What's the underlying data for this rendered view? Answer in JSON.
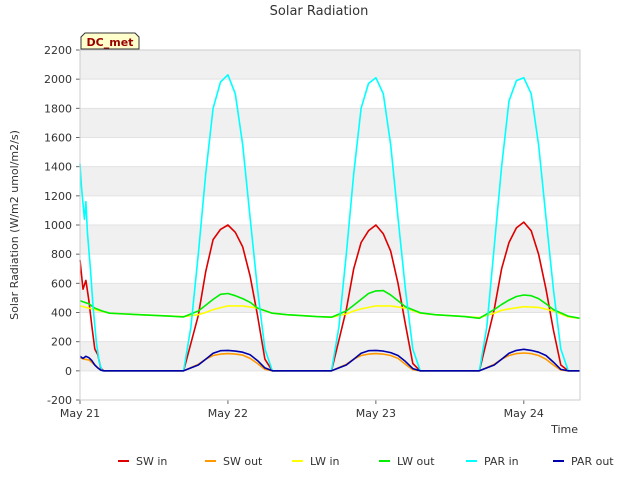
{
  "chart_data": {
    "type": "line",
    "title": "Solar Radiation",
    "xlabel": "Time",
    "ylabel": "Solar Radiation (W/m2 umol/m2/s)",
    "annotation": "DC_met",
    "xlim": [
      0,
      3.38
    ],
    "ylim": [
      -200,
      2200
    ],
    "yticks": [
      -200,
      0,
      200,
      400,
      600,
      800,
      1000,
      1200,
      1400,
      1600,
      1800,
      2000,
      2200
    ],
    "xticks": [
      {
        "value": 0,
        "label": "May 21"
      },
      {
        "value": 1,
        "label": "May 22"
      },
      {
        "value": 2,
        "label": "May 23"
      },
      {
        "value": 3,
        "label": "May 24"
      }
    ],
    "grid": "horizontal bands",
    "legend_position": "bottom",
    "series": [
      {
        "name": "SW in",
        "color": "#dd0000",
        "x": [
          0,
          0.02,
          0.04,
          0.06,
          0.08,
          0.1,
          0.12,
          0.14,
          0.16,
          0.2,
          0.4,
          0.6,
          0.7,
          0.8,
          0.85,
          0.9,
          0.95,
          1.0,
          1.05,
          1.1,
          1.15,
          1.2,
          1.25,
          1.3,
          1.4,
          1.6,
          1.7,
          1.8,
          1.85,
          1.9,
          1.95,
          2.0,
          2.05,
          2.1,
          2.15,
          2.2,
          2.25,
          2.3,
          2.4,
          2.6,
          2.7,
          2.8,
          2.85,
          2.9,
          2.95,
          3.0,
          3.05,
          3.1,
          3.15,
          3.2,
          3.25,
          3.3,
          3.38
        ],
        "values": [
          760,
          560,
          620,
          480,
          310,
          150,
          110,
          20,
          0,
          0,
          0,
          0,
          0,
          380,
          680,
          900,
          970,
          1000,
          950,
          850,
          650,
          380,
          80,
          0,
          0,
          0,
          0,
          420,
          700,
          880,
          960,
          1000,
          940,
          820,
          600,
          320,
          50,
          0,
          0,
          0,
          0,
          420,
          700,
          880,
          980,
          1020,
          960,
          800,
          560,
          280,
          40,
          0,
          0
        ]
      },
      {
        "name": "SW out",
        "color": "#ff9900",
        "x": [
          0,
          0.03,
          0.06,
          0.1,
          0.12,
          0.14,
          0.16,
          0.2,
          0.4,
          0.6,
          0.7,
          0.8,
          0.85,
          0.9,
          0.95,
          1.0,
          1.05,
          1.1,
          1.15,
          1.2,
          1.25,
          1.3,
          1.4,
          1.6,
          1.7,
          1.8,
          1.85,
          1.9,
          1.95,
          2.0,
          2.05,
          2.1,
          2.15,
          2.2,
          2.25,
          2.3,
          2.4,
          2.6,
          2.7,
          2.8,
          2.85,
          2.9,
          2.95,
          3.0,
          3.05,
          3.1,
          3.15,
          3.2,
          3.25,
          3.3,
          3.38
        ],
        "values": [
          90,
          80,
          75,
          40,
          20,
          5,
          0,
          0,
          0,
          0,
          0,
          45,
          80,
          105,
          115,
          118,
          115,
          108,
          85,
          50,
          10,
          0,
          0,
          0,
          0,
          45,
          80,
          105,
          115,
          118,
          115,
          105,
          85,
          45,
          8,
          0,
          0,
          0,
          0,
          45,
          80,
          105,
          118,
          122,
          118,
          105,
          80,
          40,
          5,
          0,
          0
        ]
      },
      {
        "name": "LW in",
        "color": "#ffff00",
        "x": [
          0,
          0.1,
          0.2,
          0.4,
          0.6,
          0.7,
          0.8,
          0.85,
          0.9,
          1.0,
          1.1,
          1.2,
          1.3,
          1.4,
          1.6,
          1.7,
          1.8,
          1.85,
          1.9,
          2.0,
          2.1,
          2.2,
          2.3,
          2.4,
          2.6,
          2.7,
          2.8,
          2.85,
          2.9,
          3.0,
          3.1,
          3.2,
          3.3,
          3.38
        ],
        "values": [
          445,
          420,
          395,
          385,
          375,
          372,
          385,
          400,
          420,
          445,
          445,
          430,
          395,
          385,
          372,
          368,
          390,
          410,
          425,
          445,
          445,
          430,
          395,
          385,
          372,
          365,
          395,
          415,
          425,
          440,
          435,
          410,
          370,
          360
        ]
      },
      {
        "name": "LW out",
        "color": "#00ee00",
        "x": [
          0,
          0.03,
          0.06,
          0.1,
          0.15,
          0.2,
          0.4,
          0.6,
          0.7,
          0.8,
          0.85,
          0.9,
          0.95,
          1.0,
          1.05,
          1.1,
          1.15,
          1.2,
          1.3,
          1.4,
          1.6,
          1.7,
          1.8,
          1.85,
          1.9,
          1.95,
          2.0,
          2.05,
          2.1,
          2.15,
          2.2,
          2.3,
          2.4,
          2.6,
          2.7,
          2.8,
          2.85,
          2.9,
          2.95,
          3.0,
          3.05,
          3.1,
          3.15,
          3.2,
          3.3,
          3.38
        ],
        "values": [
          480,
          470,
          460,
          430,
          410,
          395,
          385,
          375,
          370,
          410,
          450,
          490,
          525,
          530,
          515,
          495,
          470,
          430,
          395,
          385,
          372,
          368,
          410,
          450,
          490,
          530,
          548,
          550,
          520,
          480,
          440,
          398,
          385,
          372,
          360,
          420,
          455,
          485,
          510,
          520,
          515,
          495,
          460,
          420,
          375,
          360
        ]
      },
      {
        "name": "PAR in",
        "color": "#00ffff",
        "x": [
          0,
          0.01,
          0.03,
          0.04,
          0.05,
          0.07,
          0.09,
          0.11,
          0.13,
          0.15,
          0.17,
          0.2,
          0.4,
          0.6,
          0.7,
          0.75,
          0.8,
          0.85,
          0.9,
          0.95,
          1.0,
          1.05,
          1.1,
          1.15,
          1.2,
          1.25,
          1.3,
          1.4,
          1.6,
          1.7,
          1.75,
          1.8,
          1.85,
          1.9,
          1.95,
          2.0,
          2.05,
          2.1,
          2.15,
          2.2,
          2.25,
          2.3,
          2.4,
          2.6,
          2.7,
          2.75,
          2.8,
          2.85,
          2.9,
          2.95,
          3.0,
          3.05,
          3.1,
          3.15,
          3.2,
          3.25,
          3.3,
          3.38
        ],
        "values": [
          1420,
          1260,
          1040,
          1160,
          950,
          700,
          420,
          200,
          60,
          0,
          0,
          0,
          0,
          0,
          0,
          300,
          800,
          1350,
          1800,
          1980,
          2030,
          1900,
          1550,
          1050,
          560,
          150,
          0,
          0,
          0,
          0,
          300,
          800,
          1350,
          1800,
          1970,
          2010,
          1900,
          1550,
          1050,
          560,
          150,
          0,
          0,
          0,
          0,
          300,
          850,
          1400,
          1850,
          1990,
          2010,
          1900,
          1550,
          1050,
          560,
          150,
          0,
          0
        ]
      },
      {
        "name": "PAR out",
        "color": "#0000aa",
        "x": [
          0,
          0.02,
          0.04,
          0.06,
          0.08,
          0.1,
          0.12,
          0.14,
          0.16,
          0.2,
          0.4,
          0.6,
          0.7,
          0.8,
          0.85,
          0.9,
          0.95,
          1.0,
          1.05,
          1.1,
          1.15,
          1.2,
          1.25,
          1.3,
          1.4,
          1.6,
          1.7,
          1.8,
          1.85,
          1.9,
          1.95,
          2.0,
          2.05,
          2.1,
          2.15,
          2.2,
          2.25,
          2.3,
          2.4,
          2.6,
          2.7,
          2.8,
          2.85,
          2.9,
          2.95,
          3.0,
          3.05,
          3.1,
          3.15,
          3.2,
          3.25,
          3.3,
          3.38
        ],
        "values": [
          100,
          85,
          100,
          90,
          70,
          40,
          20,
          5,
          0,
          0,
          0,
          0,
          0,
          40,
          80,
          120,
          138,
          140,
          135,
          128,
          110,
          70,
          20,
          0,
          0,
          0,
          0,
          40,
          80,
          120,
          138,
          140,
          135,
          125,
          105,
          65,
          15,
          0,
          0,
          0,
          0,
          40,
          80,
          120,
          140,
          148,
          140,
          128,
          105,
          60,
          10,
          0,
          0
        ]
      }
    ]
  }
}
